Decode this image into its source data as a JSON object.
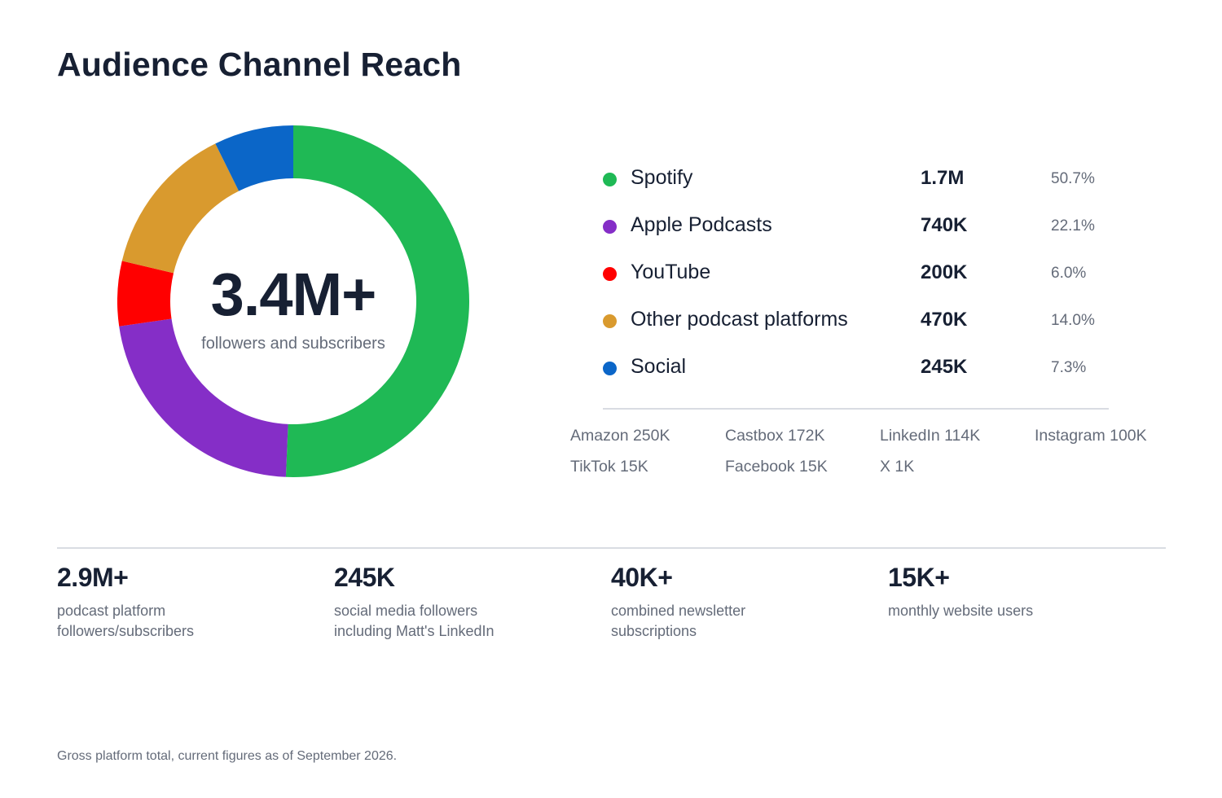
{
  "title": "Audience Channel Reach",
  "center": {
    "value": "3.4M+",
    "label": "followers and subscribers"
  },
  "chart_data": {
    "type": "pie",
    "donut": true,
    "title": "Audience Channel Reach",
    "center_text": "3.4M+",
    "center_subtext": "followers and subscribers",
    "slices": [
      {
        "name": "Spotify",
        "value_label": "1.7M",
        "value": 1700000,
        "percent_label": "50.7%",
        "percent": 50.7,
        "color": "#1fb955"
      },
      {
        "name": "Apple Podcasts",
        "value_label": "740K",
        "value": 740000,
        "percent_label": "22.1%",
        "percent": 22.1,
        "color": "#852ec7"
      },
      {
        "name": "YouTube",
        "value_label": "200K",
        "value": 200000,
        "percent_label": "6.0%",
        "percent": 6.0,
        "color": "#ff0000"
      },
      {
        "name": "Other podcast platforms",
        "value_label": "470K",
        "value": 470000,
        "percent_label": "14.0%",
        "percent": 14.0,
        "color": "#d99a2e"
      },
      {
        "name": "Social",
        "value_label": "245K",
        "value": 245000,
        "percent_label": "7.3%",
        "percent": 7.3,
        "color": "#0b66c8"
      }
    ],
    "legend_position": "right"
  },
  "breakdown": [
    "Amazon 250K",
    "Castbox 172K",
    "LinkedIn 114K",
    "Instagram 100K",
    "TikTok 15K",
    "Facebook 15K",
    "X 1K"
  ],
  "stats": [
    {
      "value": "2.9M+",
      "desc_line1": "podcast platform",
      "desc_line2": "followers/subscribers"
    },
    {
      "value": "245K",
      "desc_line1": "social media followers",
      "desc_line2": "including Matt's LinkedIn"
    },
    {
      "value": "40K+",
      "desc_line1": "combined newsletter",
      "desc_line2": "subscriptions"
    },
    {
      "value": "15K+",
      "desc_line1": "monthly website users",
      "desc_line2": ""
    }
  ],
  "footnote": "Gross platform total, current figures as of September 2026."
}
